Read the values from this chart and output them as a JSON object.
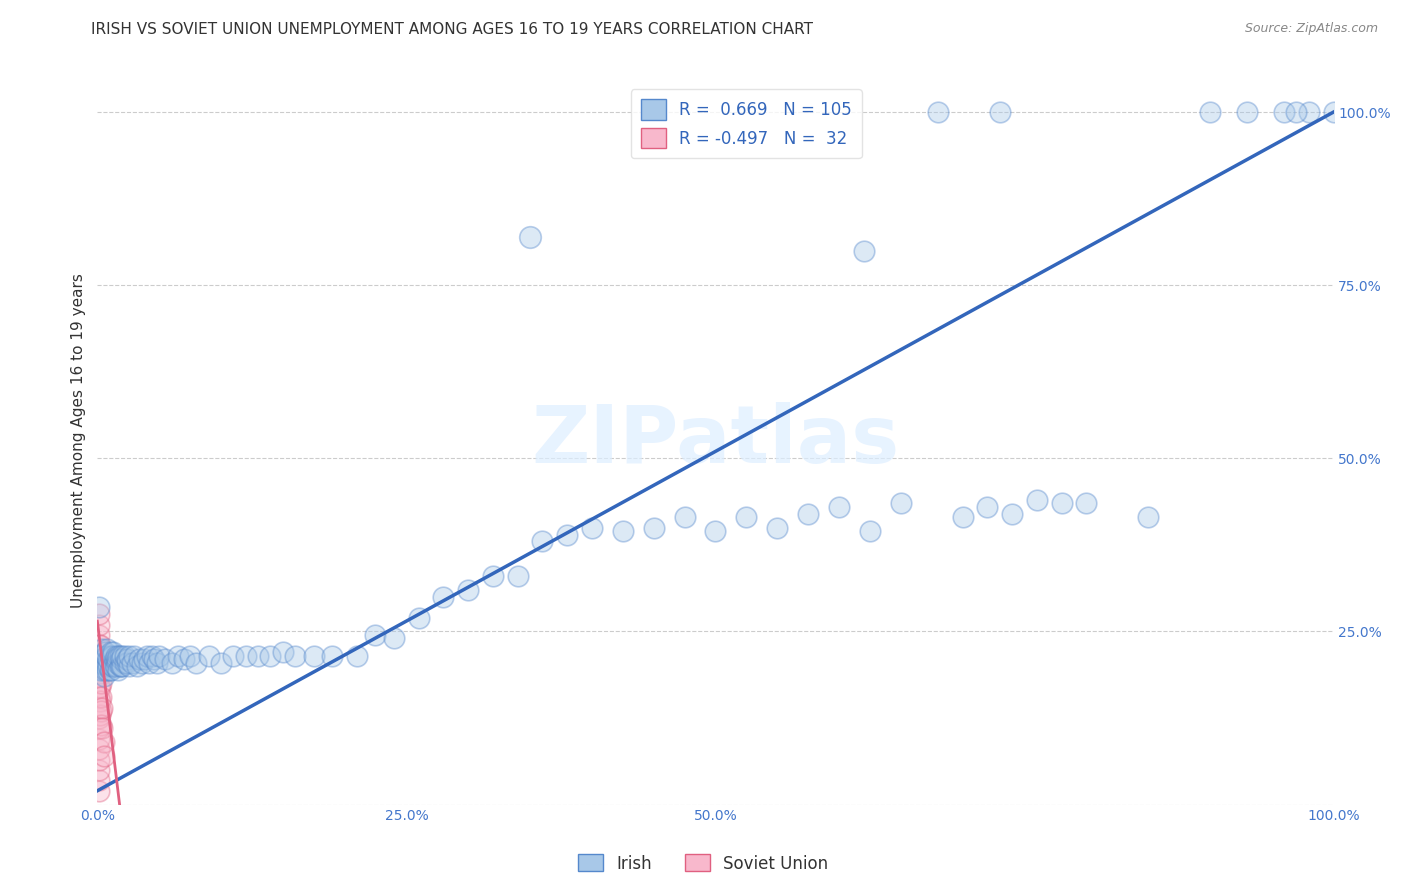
{
  "title": "IRISH VS SOVIET UNION UNEMPLOYMENT AMONG AGES 16 TO 19 YEARS CORRELATION CHART",
  "source": "Source: ZipAtlas.com",
  "ylabel": "Unemployment Among Ages 16 to 19 years",
  "irish_R": 0.669,
  "irish_N": 105,
  "soviet_R": -0.497,
  "soviet_N": 32,
  "irish_color": "#a8c8e8",
  "irish_edge_color": "#5588cc",
  "soviet_color": "#f8b8cc",
  "soviet_edge_color": "#e06080",
  "trend_color": "#3366bb",
  "soviet_trend_color": "#e06080",
  "watermark_text": "ZIPatlas",
  "watermark_color": "#ddeeff",
  "trend_x0": 0.0,
  "trend_y0": 0.02,
  "trend_x1": 1.0,
  "trend_y1": 1.0,
  "soviet_trend_x0": 0.0,
  "soviet_trend_y0": 0.265,
  "soviet_trend_x1": 0.018,
  "soviet_trend_y1": 0.0,
  "xlim": [
    0.0,
    1.0
  ],
  "ylim": [
    0.0,
    1.05
  ],
  "x_ticks": [
    0.0,
    0.25,
    0.5,
    0.75,
    1.0
  ],
  "x_tick_labels": [
    "0.0%",
    "25.0%",
    "50.0%",
    "",
    "100.0%"
  ],
  "y_ticks": [
    0.0,
    0.25,
    0.5,
    0.75,
    1.0
  ],
  "y_tick_labels": [
    "",
    "25.0%",
    "50.0%",
    "75.0%",
    "100.0%"
  ],
  "grid_color": "#cccccc",
  "bg_color": "#ffffff",
  "title_fontsize": 11,
  "axis_label_fontsize": 11,
  "tick_fontsize": 10,
  "source_fontsize": 9,
  "marker_size": 220,
  "marker_alpha": 0.4,
  "marker_lw": 1.2,
  "irish_x": [
    0.001,
    0.001,
    0.002,
    0.003,
    0.004,
    0.004,
    0.005,
    0.005,
    0.006,
    0.006,
    0.007,
    0.007,
    0.008,
    0.008,
    0.009,
    0.009,
    0.01,
    0.01,
    0.011,
    0.011,
    0.012,
    0.012,
    0.013,
    0.013,
    0.014,
    0.014,
    0.015,
    0.015,
    0.016,
    0.016,
    0.017,
    0.017,
    0.018,
    0.018,
    0.019,
    0.019,
    0.02,
    0.02,
    0.022,
    0.022,
    0.024,
    0.024,
    0.026,
    0.026,
    0.028,
    0.03,
    0.032,
    0.034,
    0.036,
    0.038,
    0.04,
    0.042,
    0.044,
    0.046,
    0.048,
    0.05,
    0.055,
    0.06,
    0.065,
    0.07,
    0.075,
    0.08,
    0.09,
    0.1,
    0.11,
    0.12,
    0.13,
    0.14,
    0.15,
    0.16,
    0.175,
    0.19,
    0.21,
    0.225,
    0.24,
    0.26,
    0.28,
    0.3,
    0.32,
    0.34,
    0.36,
    0.38,
    0.4,
    0.425,
    0.45,
    0.475,
    0.5,
    0.525,
    0.55,
    0.575,
    0.6,
    0.625,
    0.65,
    0.7,
    0.72,
    0.74,
    0.76,
    0.78,
    0.8,
    0.85,
    0.9,
    0.93,
    0.96,
    0.98,
    1.0
  ],
  "irish_y": [
    0.285,
    0.215,
    0.195,
    0.205,
    0.195,
    0.225,
    0.185,
    0.21,
    0.195,
    0.22,
    0.2,
    0.215,
    0.195,
    0.225,
    0.2,
    0.21,
    0.195,
    0.215,
    0.195,
    0.22,
    0.2,
    0.215,
    0.2,
    0.22,
    0.2,
    0.21,
    0.2,
    0.215,
    0.205,
    0.21,
    0.195,
    0.215,
    0.2,
    0.215,
    0.2,
    0.21,
    0.2,
    0.215,
    0.205,
    0.215,
    0.205,
    0.21,
    0.2,
    0.215,
    0.205,
    0.215,
    0.2,
    0.21,
    0.205,
    0.21,
    0.215,
    0.205,
    0.215,
    0.21,
    0.205,
    0.215,
    0.21,
    0.205,
    0.215,
    0.21,
    0.215,
    0.205,
    0.215,
    0.205,
    0.215,
    0.215,
    0.215,
    0.215,
    0.22,
    0.215,
    0.215,
    0.215,
    0.215,
    0.245,
    0.24,
    0.27,
    0.3,
    0.31,
    0.33,
    0.33,
    0.38,
    0.39,
    0.4,
    0.395,
    0.4,
    0.415,
    0.395,
    0.415,
    0.4,
    0.42,
    0.43,
    0.395,
    0.435,
    0.415,
    0.43,
    0.42,
    0.44,
    0.435,
    0.435,
    0.415,
    1.0,
    1.0,
    1.0,
    1.0,
    1.0
  ],
  "soviet_x": [
    0.001,
    0.001,
    0.001,
    0.001,
    0.001,
    0.001,
    0.001,
    0.001,
    0.001,
    0.001,
    0.001,
    0.001,
    0.001,
    0.001,
    0.001,
    0.001,
    0.001,
    0.001,
    0.002,
    0.002,
    0.002,
    0.002,
    0.002,
    0.002,
    0.003,
    0.003,
    0.003,
    0.003,
    0.004,
    0.004,
    0.005,
    0.005
  ],
  "soviet_y": [
    0.02,
    0.035,
    0.05,
    0.065,
    0.08,
    0.095,
    0.11,
    0.125,
    0.14,
    0.155,
    0.17,
    0.185,
    0.2,
    0.215,
    0.23,
    0.245,
    0.26,
    0.275,
    0.23,
    0.21,
    0.19,
    0.17,
    0.15,
    0.13,
    0.175,
    0.155,
    0.135,
    0.115,
    0.14,
    0.11,
    0.09,
    0.07
  ]
}
